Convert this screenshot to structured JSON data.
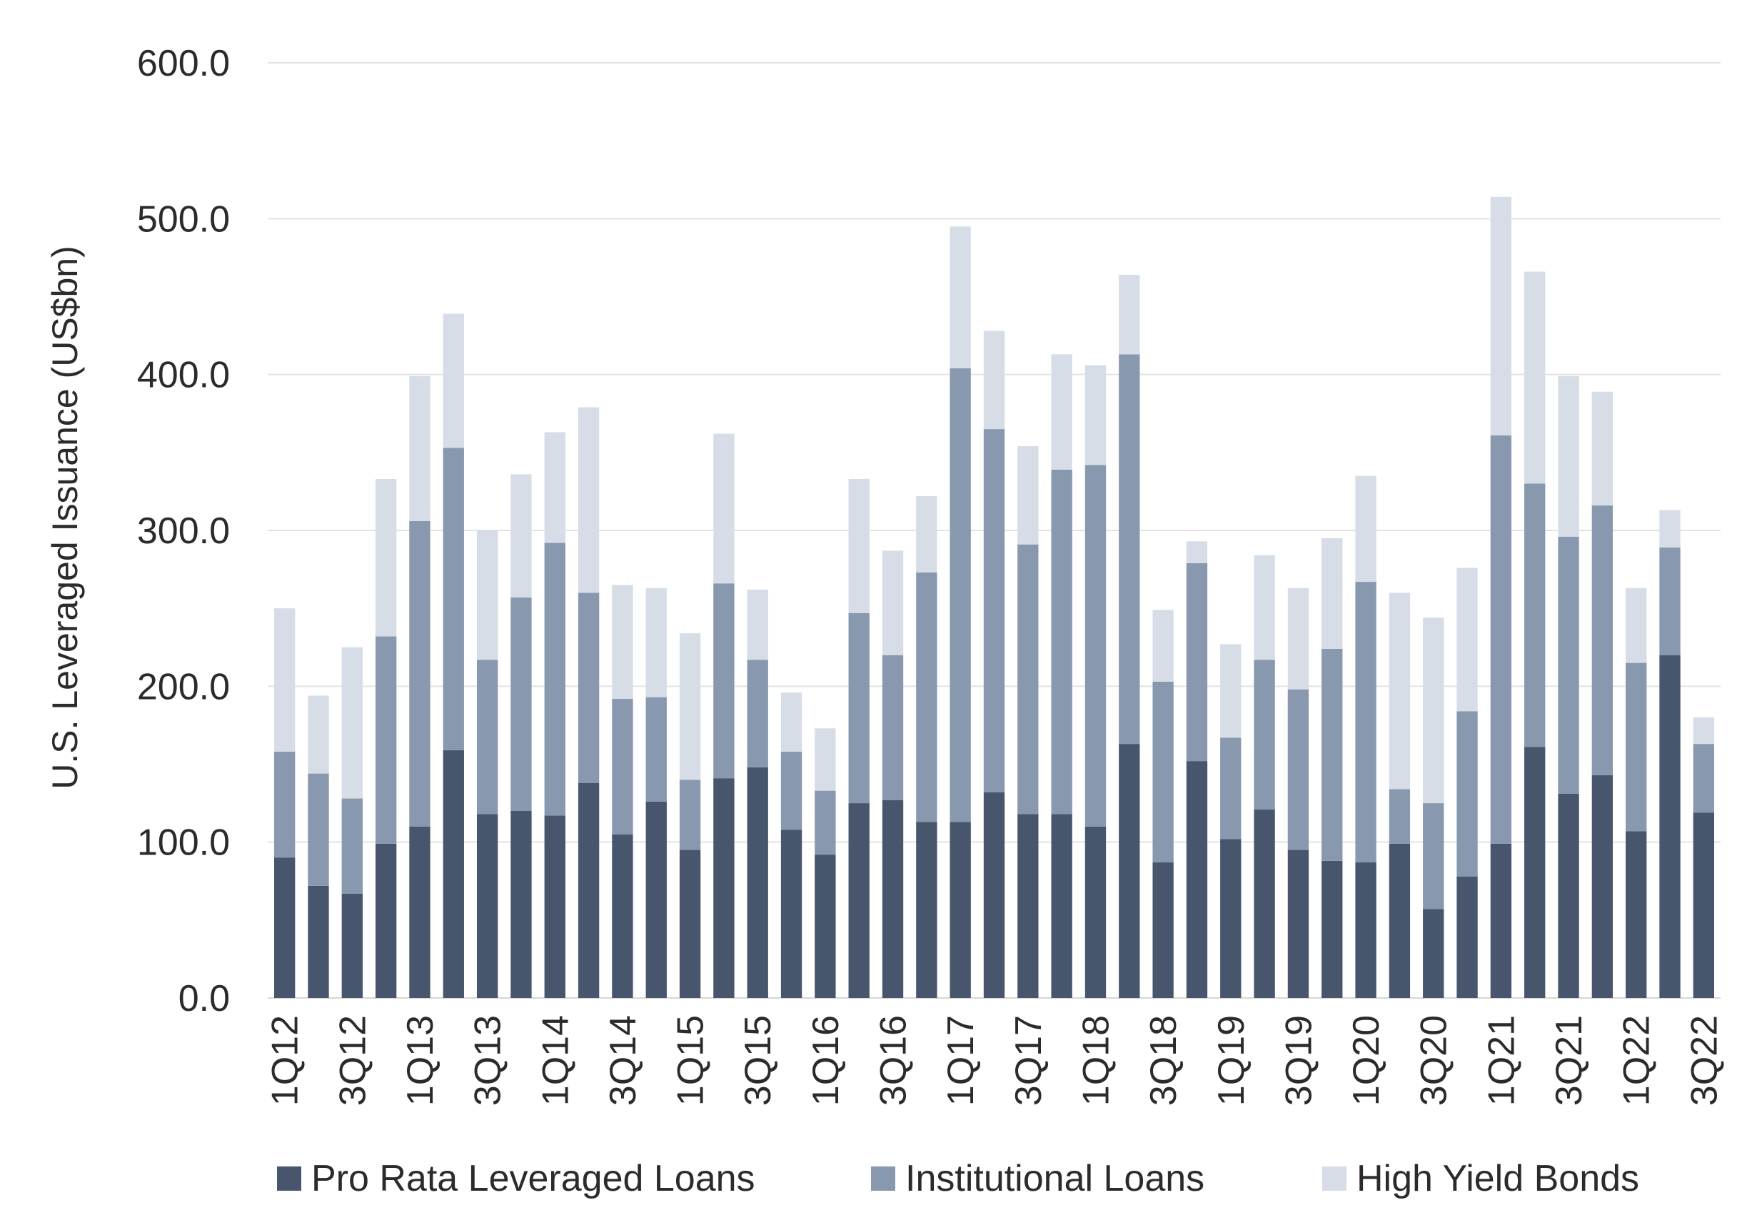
{
  "chart_data": {
    "type": "bar",
    "stacked": true,
    "title": "",
    "xlabel": "",
    "ylabel": "U.S. Leveraged Issuance (US$bn)",
    "ylim": [
      0,
      600
    ],
    "yticks": [
      "0.0",
      "100.0",
      "200.0",
      "300.0",
      "400.0",
      "500.0",
      "600.0"
    ],
    "grid": true,
    "legend_position": "bottom",
    "categories": [
      "1Q12",
      "2Q12",
      "3Q12",
      "4Q12",
      "1Q13",
      "2Q13",
      "3Q13",
      "4Q13",
      "1Q14",
      "2Q14",
      "3Q14",
      "4Q14",
      "1Q15",
      "2Q15",
      "3Q15",
      "4Q15",
      "1Q16",
      "2Q16",
      "3Q16",
      "4Q16",
      "1Q17",
      "2Q17",
      "3Q17",
      "4Q17",
      "1Q18",
      "2Q18",
      "3Q18",
      "4Q18",
      "1Q19",
      "2Q19",
      "3Q19",
      "4Q19",
      "1Q20",
      "2Q20",
      "3Q20",
      "4Q20",
      "1Q21",
      "2Q21",
      "3Q21",
      "4Q21",
      "1Q22",
      "2Q22",
      "3Q22"
    ],
    "shown_tick_labels": [
      "1Q12",
      "3Q12",
      "1Q13",
      "3Q13",
      "1Q14",
      "3Q14",
      "1Q15",
      "3Q15",
      "1Q16",
      "3Q16",
      "1Q17",
      "3Q17",
      "1Q18",
      "3Q18",
      "1Q19",
      "3Q19",
      "1Q20",
      "3Q20",
      "1Q21",
      "3Q21",
      "1Q22",
      "3Q22"
    ],
    "series": [
      {
        "name": "Pro Rata Leveraged Loans",
        "color": "#47566c",
        "values": [
          90,
          72,
          67,
          99,
          110,
          159,
          118,
          120,
          117,
          138,
          105,
          126,
          95,
          141,
          148,
          108,
          92,
          125,
          127,
          113,
          113,
          132,
          118,
          118,
          110,
          163,
          87,
          152,
          102,
          121,
          95,
          88,
          87,
          99,
          57,
          78,
          99,
          161,
          131,
          143,
          107,
          220,
          119
        ]
      },
      {
        "name": "Institutional Loans",
        "color": "#8898ae",
        "values": [
          68,
          72,
          61,
          133,
          196,
          194,
          99,
          137,
          175,
          122,
          87,
          67,
          45,
          125,
          69,
          50,
          41,
          122,
          93,
          160,
          291,
          233,
          173,
          221,
          232,
          250,
          116,
          127,
          65,
          96,
          103,
          136,
          180,
          35,
          68,
          106,
          262,
          169,
          165,
          173,
          108,
          69,
          44
        ]
      },
      {
        "name": "High Yield Bonds",
        "color": "#d7dde6",
        "values": [
          92,
          50,
          97,
          101,
          93,
          86,
          83,
          79,
          71,
          119,
          73,
          70,
          94,
          96,
          45,
          38,
          40,
          86,
          67,
          49,
          91,
          63,
          63,
          74,
          64,
          51,
          46,
          14,
          60,
          67,
          65,
          71,
          68,
          126,
          119,
          92,
          153,
          136,
          103,
          73,
          48,
          24,
          17
        ]
      }
    ]
  }
}
